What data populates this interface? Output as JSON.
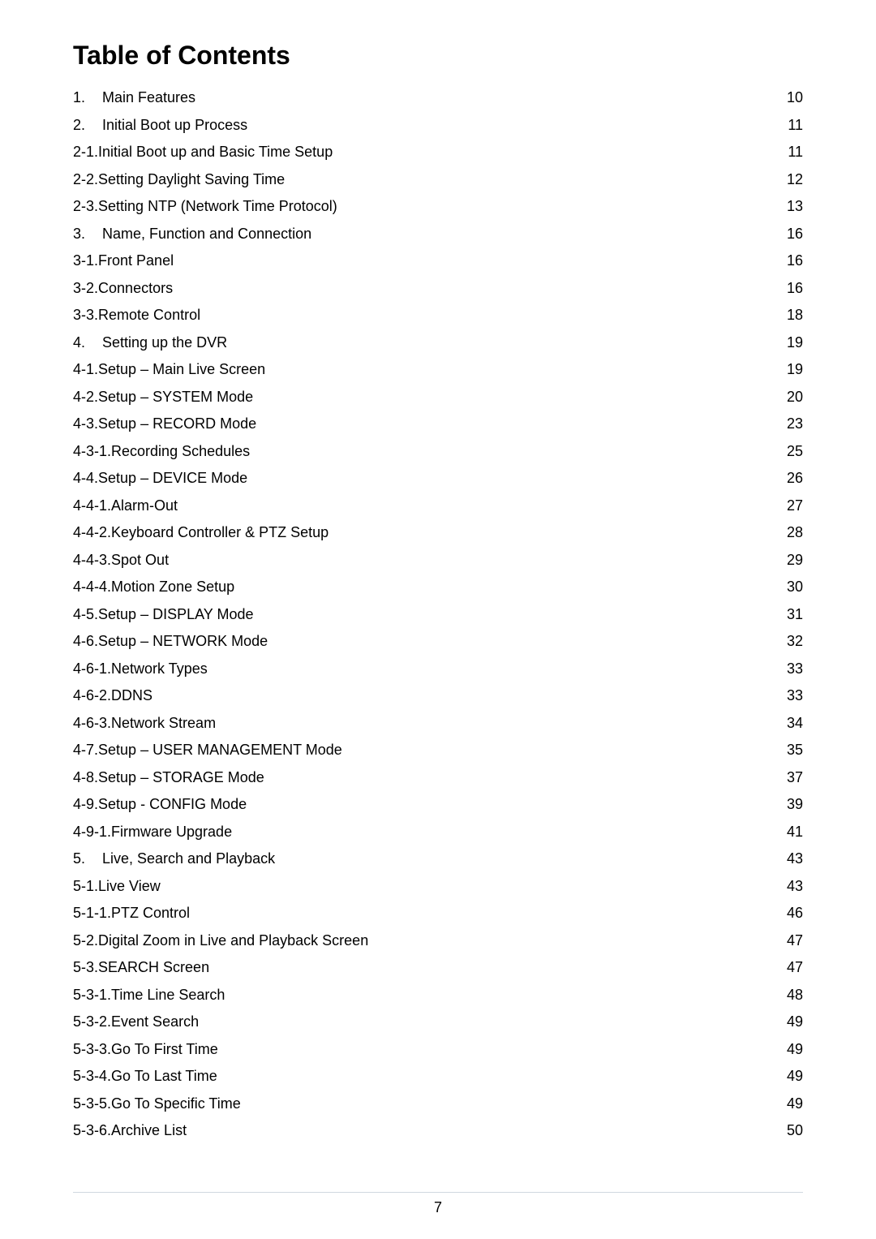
{
  "title": "Table of Contents",
  "page_number": "7",
  "colors": {
    "background": "#ffffff",
    "text": "#000000",
    "rule": "#d0d8e0"
  },
  "typography": {
    "title_fontsize_pt": 24,
    "title_weight": "bold",
    "body_fontsize_pt": 13,
    "font_family": "Arial"
  },
  "toc": [
    {
      "num": "1.",
      "main": true,
      "label": "Main Features ",
      "page": " 10"
    },
    {
      "num": "2.",
      "main": true,
      "label": "Initial Boot up Process",
      "page": "11"
    },
    {
      "num": "2-1. ",
      "main": false,
      "label": "Initial Boot up and Basic Time Setup ",
      "page": "11"
    },
    {
      "num": "2-2. ",
      "main": false,
      "label": "Setting Daylight Saving Time",
      "page": "12"
    },
    {
      "num": "2-3. ",
      "main": false,
      "label": "Setting NTP (Network Time Protocol) ",
      "page": "13"
    },
    {
      "num": "3.",
      "main": true,
      "label": "Name, Function and Connection ",
      "page": " 16"
    },
    {
      "num": "3-1. ",
      "main": false,
      "label": "Front Panel",
      "page": "16"
    },
    {
      "num": "3-2. ",
      "main": false,
      "label": "Connectors",
      "page": "16"
    },
    {
      "num": "3-3. ",
      "main": false,
      "label": "Remote Control ",
      "page": "18"
    },
    {
      "num": "4.",
      "main": true,
      "label": "Setting up the DVR",
      "page": " 19"
    },
    {
      "num": "4-1. ",
      "main": false,
      "label": "Setup – Main Live Screen",
      "page": "19"
    },
    {
      "num": "4-2. ",
      "main": false,
      "label": "Setup – SYSTEM Mode ",
      "page": "20"
    },
    {
      "num": "4-3. ",
      "main": false,
      "label": "Setup – RECORD Mode",
      "page": "23"
    },
    {
      "num": "4-3-1. ",
      "main": false,
      "label": "Recording Schedules ",
      "page": "25"
    },
    {
      "num": "4-4. ",
      "main": false,
      "label": "Setup – DEVICE Mode",
      "page": "26"
    },
    {
      "num": "4-4-1. ",
      "main": false,
      "label": "Alarm-Out",
      "page": "27"
    },
    {
      "num": "4-4-2. ",
      "main": false,
      "label": "Keyboard Controller & PTZ Setup ",
      "page": "28"
    },
    {
      "num": "4-4-3. ",
      "main": false,
      "label": "Spot Out ",
      "page": "29"
    },
    {
      "num": "4-4-4. ",
      "main": false,
      "label": "Motion Zone Setup",
      "page": "30"
    },
    {
      "num": "4-5. ",
      "main": false,
      "label": "Setup – DISPLAY Mode ",
      "page": "31"
    },
    {
      "num": "4-6. ",
      "main": false,
      "label": "Setup – NETWORK Mode ",
      "page": "32"
    },
    {
      "num": "4-6-1. ",
      "main": false,
      "label": "Network Types ",
      "page": "33"
    },
    {
      "num": "4-6-2. ",
      "main": false,
      "label": "DDNS",
      "page": "33"
    },
    {
      "num": "4-6-3. ",
      "main": false,
      "label": "Network Stream",
      "page": "34"
    },
    {
      "num": "4-7. ",
      "main": false,
      "label": "Setup – USER MANAGEMENT Mode ",
      "page": "35"
    },
    {
      "num": "4-8. ",
      "main": false,
      "label": "Setup – STORAGE Mode",
      "page": "37"
    },
    {
      "num": "4-9. ",
      "main": false,
      "label": "Setup - CONFIG Mode ",
      "page": "39"
    },
    {
      "num": "4-9-1. ",
      "main": false,
      "label": "Firmware Upgrade",
      "page": "41"
    },
    {
      "num": "5.",
      "main": true,
      "label": "Live, Search and Playback ",
      "page": " 43"
    },
    {
      "num": "5-1. ",
      "main": false,
      "label": "Live View ",
      "page": "43"
    },
    {
      "num": "5-1-1. ",
      "main": false,
      "label": "PTZ Control",
      "page": "46"
    },
    {
      "num": "5-2. ",
      "main": false,
      "label": "Digital Zoom in Live and Playback Screen",
      "page": "47"
    },
    {
      "num": "5-3. ",
      "main": false,
      "label": "SEARCH Screen ",
      "page": "47"
    },
    {
      "num": "5-3-1. ",
      "main": false,
      "label": "Time Line Search ",
      "page": "48"
    },
    {
      "num": "5-3-2. ",
      "main": false,
      "label": "Event Search",
      "page": "49"
    },
    {
      "num": "5-3-3. ",
      "main": false,
      "label": "Go To First Time ",
      "page": "49"
    },
    {
      "num": "5-3-4. ",
      "main": false,
      "label": "Go To Last Time ",
      "page": "49"
    },
    {
      "num": "5-3-5. ",
      "main": false,
      "label": "Go To Specific Time",
      "page": "49"
    },
    {
      "num": "5-3-6. ",
      "main": false,
      "label": "Archive List",
      "page": "50"
    }
  ]
}
